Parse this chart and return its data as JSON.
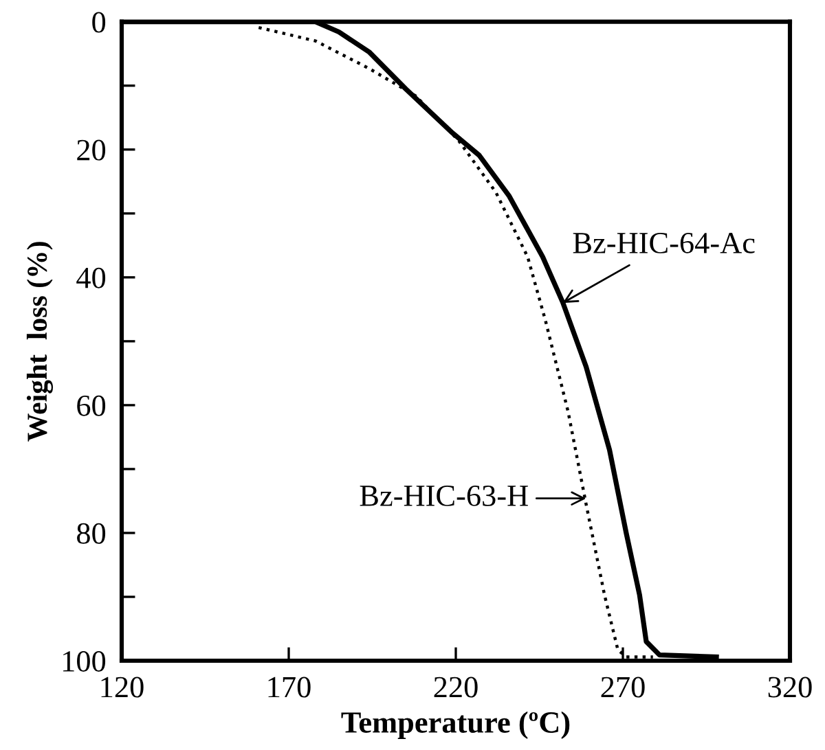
{
  "chart_data": {
    "type": "line",
    "xlabel": "Temperature (ºC)",
    "ylabel": "Weight  loss (%)",
    "xlim": [
      120,
      320
    ],
    "xticks": [
      120,
      170,
      220,
      270,
      320
    ],
    "ylim": [
      100,
      0
    ],
    "yticks": [
      0,
      {
        "value": 10,
        "label": null
      },
      20,
      {
        "value": 30,
        "label": null
      },
      40,
      {
        "value": 50,
        "label": null
      },
      60,
      {
        "value": 70,
        "label": null
      },
      80,
      {
        "value": 90,
        "label": null
      },
      100
    ],
    "grid": false,
    "legend": false,
    "marker": "none",
    "series": [
      {
        "color": "#000000",
        "line_style": "solid",
        "x": [
          120,
          178,
          185,
          194,
          205,
          219,
          227,
          236,
          246,
          252,
          259,
          266,
          271,
          275,
          277,
          281,
          298
        ],
        "values": [
          0,
          0,
          1.6,
          4.7,
          10.5,
          17.4,
          20.9,
          27.3,
          36.8,
          43.9,
          54,
          67,
          80,
          89.7,
          97,
          99.1,
          99.4
        ]
      },
      {
        "color": "#000000",
        "line_style": "dotted",
        "x": [
          161,
          178,
          194,
          208,
          221,
          232,
          241.5,
          246.8,
          253.6,
          259,
          264.5,
          268.5,
          271,
          279
        ],
        "values": [
          0.9,
          3,
          7.3,
          11.6,
          18.7,
          26.7,
          36.8,
          46.7,
          61,
          75.5,
          89.7,
          98.3,
          99.4,
          99.4
        ]
      }
    ],
    "annotations": [
      {
        "text": "Bz-HIC-64-Ac",
        "x": 252,
        "y": 44
      },
      {
        "text": "Bz-HIC-63-H",
        "x": 259,
        "y": 74.6
      }
    ]
  }
}
